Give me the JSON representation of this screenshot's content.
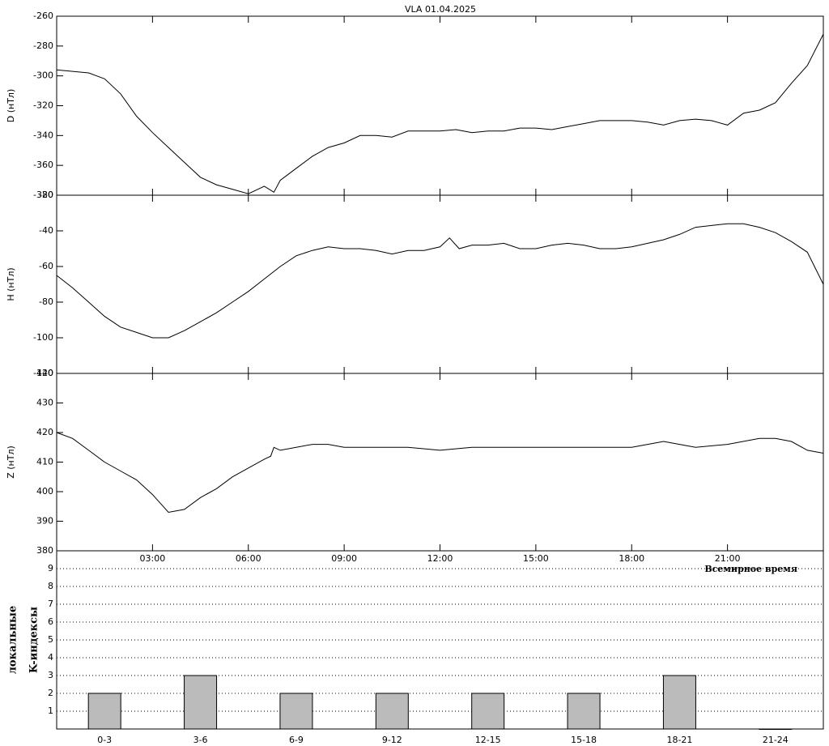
{
  "chart_data": [
    {
      "type": "line",
      "title": "VLA   01.04.2025",
      "ylabel": "D (нТл)",
      "color": "#000000",
      "x": [
        0,
        0.5,
        1,
        1.5,
        2,
        2.5,
        3,
        3.5,
        4,
        4.5,
        5,
        5.5,
        6,
        6.5,
        6.8,
        7,
        7.25,
        7.5,
        8,
        8.5,
        9,
        9.5,
        10,
        10.5,
        11,
        11.5,
        12,
        12.5,
        13,
        13.5,
        14,
        14.5,
        15,
        15.5,
        16,
        16.5,
        17,
        17.5,
        18,
        18.5,
        19,
        19.5,
        20,
        20.5,
        21,
        21.5,
        22,
        22.5,
        23,
        23.5,
        24
      ],
      "values": [
        -296,
        -297,
        -298,
        -302,
        -312,
        -327,
        -338,
        -348,
        -358,
        -368,
        -373,
        -376,
        -379,
        -374,
        -378,
        -370,
        -366,
        -362,
        -354,
        -348,
        -345,
        -340,
        -340,
        -341,
        -337,
        -337,
        -337,
        -336,
        -338,
        -337,
        -337,
        -335,
        -335,
        -336,
        -334,
        -332,
        -330,
        -330,
        -330,
        -331,
        -333,
        -330,
        -329,
        -330,
        -333,
        -325,
        -323,
        -318,
        -305,
        -293,
        -272
      ],
      "xlim": [
        0,
        24
      ],
      "ylim": [
        -380,
        -260
      ],
      "yticks": [
        -260,
        -280,
        -300,
        -320,
        -340,
        -360,
        -380
      ]
    },
    {
      "type": "line",
      "ylabel": "H (нТл)",
      "color": "#000000",
      "x": [
        0,
        0.5,
        1,
        1.5,
        2,
        2.5,
        3,
        3.5,
        4,
        4.5,
        5,
        5.5,
        6,
        6.5,
        7,
        7.5,
        8,
        8.5,
        9,
        9.5,
        10,
        10.5,
        11,
        11.5,
        12,
        12.3,
        12.6,
        13,
        13.5,
        14,
        14.5,
        15,
        15.5,
        16,
        16.5,
        17,
        17.5,
        18,
        18.5,
        19,
        19.5,
        20,
        20.5,
        21,
        21.5,
        22,
        22.5,
        23,
        23.5,
        24
      ],
      "values": [
        -65,
        -72,
        -80,
        -88,
        -94,
        -97,
        -100,
        -100,
        -96,
        -91,
        -86,
        -80,
        -74,
        -67,
        -60,
        -54,
        -51,
        -49,
        -50,
        -50,
        -51,
        -53,
        -51,
        -51,
        -49,
        -44,
        -50,
        -48,
        -48,
        -47,
        -50,
        -50,
        -48,
        -47,
        -48,
        -50,
        -50,
        -49,
        -47,
        -45,
        -42,
        -38,
        -37,
        -36,
        -36,
        -38,
        -41,
        -46,
        -52,
        -70
      ],
      "xlim": [
        0,
        24
      ],
      "ylim": [
        -120,
        -20
      ],
      "yticks": [
        -20,
        -40,
        -60,
        -80,
        -100,
        -120
      ]
    },
    {
      "type": "line",
      "ylabel": "Z (нТл)",
      "xlabel": "Всемирное время",
      "color": "#000000",
      "x": [
        0,
        0.5,
        1,
        1.5,
        2,
        2.5,
        3,
        3.5,
        4,
        4.5,
        5,
        5.5,
        6,
        6.5,
        6.7,
        6.8,
        7,
        7.5,
        8,
        8.5,
        9,
        10,
        11,
        12,
        13,
        14,
        15,
        16,
        17,
        18,
        18.5,
        19,
        19.5,
        20,
        21,
        22,
        22.5,
        23,
        23.5,
        24
      ],
      "values": [
        420,
        418,
        414,
        410,
        407,
        404,
        399,
        393,
        394,
        398,
        401,
        405,
        408,
        411,
        412,
        415,
        414,
        415,
        416,
        416,
        415,
        415,
        415,
        414,
        415,
        415,
        415,
        415,
        415,
        415,
        416,
        417,
        416,
        415,
        416,
        418,
        418,
        417,
        414,
        413
      ],
      "xlim": [
        0,
        24
      ],
      "ylim": [
        380,
        440
      ],
      "yticks": [
        380,
        390,
        400,
        410,
        420,
        430,
        440
      ],
      "xticks": [
        {
          "value": 3,
          "label": "03:00"
        },
        {
          "value": 6,
          "label": "06:00"
        },
        {
          "value": 9,
          "label": "09:00"
        },
        {
          "value": 12,
          "label": "12:00"
        },
        {
          "value": 15,
          "label": "15:00"
        },
        {
          "value": 18,
          "label": "18:00"
        },
        {
          "value": 21,
          "label": "21:00"
        }
      ]
    },
    {
      "type": "bar",
      "ylabel": [
        "локальные",
        "K-индексы"
      ],
      "color": "#bbbbbb",
      "categories": [
        "0-3",
        "3-6",
        "6-9",
        "9-12",
        "12-15",
        "15-18",
        "18-21",
        "21-24"
      ],
      "values": [
        2,
        3,
        2,
        2,
        2,
        2,
        3,
        0
      ],
      "ylim": [
        0,
        10
      ],
      "yticks": [
        1,
        2,
        3,
        4,
        5,
        6,
        7,
        8,
        9
      ],
      "grid": true
    }
  ]
}
